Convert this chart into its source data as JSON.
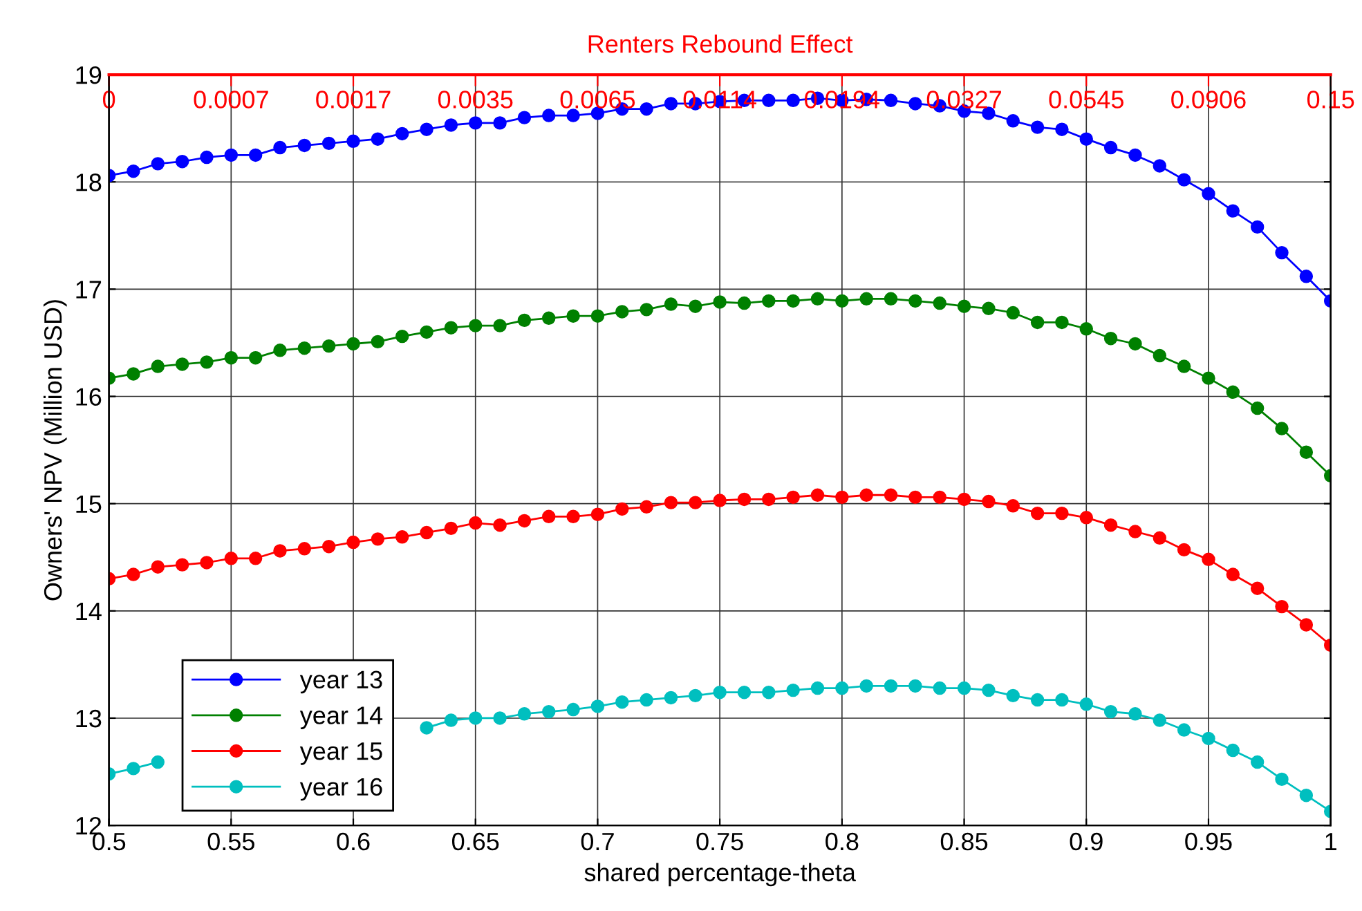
{
  "chart_data": {
    "type": "line",
    "xlabel": "shared percentage-theta",
    "ylabel": "Owners' NPV (Million USD)",
    "x2label": "Renters Rebound Effect",
    "x": [
      0.5,
      0.51,
      0.52,
      0.53,
      0.54,
      0.55,
      0.56,
      0.57,
      0.58,
      0.59,
      0.6,
      0.61,
      0.62,
      0.63,
      0.64,
      0.65,
      0.66,
      0.67,
      0.68,
      0.69,
      0.7,
      0.71,
      0.72,
      0.73,
      0.74,
      0.75,
      0.76,
      0.77,
      0.78,
      0.79,
      0.8,
      0.81,
      0.82,
      0.83,
      0.84,
      0.85,
      0.86,
      0.87,
      0.88,
      0.89,
      0.9,
      0.91,
      0.92,
      0.93,
      0.94,
      0.95,
      0.96,
      0.97,
      0.98,
      0.99,
      1.0
    ],
    "series": [
      {
        "name": "year 13",
        "color": "#0000ff",
        "values": [
          18.06,
          18.1,
          18.17,
          18.19,
          18.23,
          18.25,
          18.25,
          18.32,
          18.34,
          18.36,
          18.38,
          18.4,
          18.45,
          18.49,
          18.53,
          18.55,
          18.55,
          18.6,
          18.62,
          18.62,
          18.64,
          18.68,
          18.68,
          18.73,
          18.73,
          18.75,
          18.76,
          18.76,
          18.76,
          18.78,
          18.76,
          18.77,
          18.76,
          18.73,
          18.71,
          18.66,
          18.64,
          18.57,
          18.51,
          18.49,
          18.4,
          18.32,
          18.25,
          18.15,
          18.02,
          17.89,
          17.73,
          17.58,
          17.34,
          17.12,
          16.89
        ]
      },
      {
        "name": "year 14",
        "color": "#008000",
        "values": [
          16.17,
          16.21,
          16.28,
          16.3,
          16.32,
          16.36,
          16.36,
          16.43,
          16.45,
          16.47,
          16.49,
          16.51,
          16.56,
          16.6,
          16.64,
          16.66,
          16.66,
          16.71,
          16.73,
          16.75,
          16.75,
          16.79,
          16.81,
          16.86,
          16.84,
          16.88,
          16.87,
          16.89,
          16.89,
          16.91,
          16.89,
          16.91,
          16.91,
          16.89,
          16.87,
          16.84,
          16.82,
          16.78,
          16.69,
          16.69,
          16.63,
          16.54,
          16.49,
          16.38,
          16.28,
          16.17,
          16.04,
          15.89,
          15.7,
          15.48,
          15.26
        ]
      },
      {
        "name": "year 15",
        "color": "#ff0000",
        "values": [
          14.3,
          14.34,
          14.41,
          14.43,
          14.45,
          14.49,
          14.49,
          14.56,
          14.58,
          14.6,
          14.64,
          14.67,
          14.69,
          14.73,
          14.77,
          14.82,
          14.8,
          14.84,
          14.88,
          14.88,
          14.9,
          14.95,
          14.97,
          15.01,
          15.01,
          15.03,
          15.04,
          15.04,
          15.06,
          15.08,
          15.06,
          15.08,
          15.08,
          15.06,
          15.06,
          15.04,
          15.02,
          14.98,
          14.91,
          14.91,
          14.87,
          14.8,
          14.74,
          14.68,
          14.57,
          14.48,
          14.34,
          14.21,
          14.04,
          13.87,
          13.68
        ]
      },
      {
        "name": "year 16",
        "color": "#00bfbf",
        "values": [
          12.48,
          12.53,
          12.59,
          null,
          null,
          null,
          null,
          null,
          null,
          null,
          null,
          null,
          null,
          12.91,
          12.98,
          13.0,
          13.0,
          13.04,
          13.06,
          13.08,
          13.11,
          13.15,
          13.17,
          13.19,
          13.21,
          13.24,
          13.24,
          13.24,
          13.26,
          13.28,
          13.28,
          13.3,
          13.3,
          13.3,
          13.28,
          13.28,
          13.26,
          13.21,
          13.17,
          13.17,
          13.13,
          13.06,
          13.04,
          12.98,
          12.89,
          12.81,
          12.7,
          12.59,
          12.43,
          12.28,
          12.13
        ]
      }
    ],
    "xlim": [
      0.5,
      1
    ],
    "xticks": [
      0.5,
      0.55,
      0.6,
      0.65,
      0.7,
      0.75,
      0.8,
      0.85,
      0.9,
      0.95,
      1
    ],
    "ylim": [
      12,
      19
    ],
    "yticks": [
      12,
      13,
      14,
      15,
      16,
      17,
      18,
      19
    ],
    "annotations": [
      "0",
      "0.0007",
      "0.0017",
      "0.0035",
      "0.0065",
      "0.0114",
      "0.0194",
      "0.0327",
      "0.0545",
      "0.0906",
      "0.15"
    ],
    "grid": true,
    "legend": "bottom left",
    "marker": "circle",
    "line_style": "solid"
  }
}
